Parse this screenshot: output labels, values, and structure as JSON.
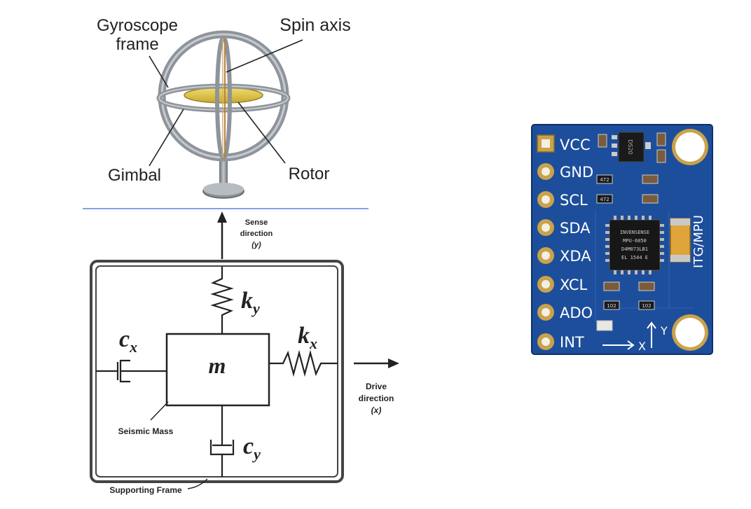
{
  "gyroscope": {
    "frame_label_line1": "Gyroscope",
    "frame_label_line2": "frame",
    "spin_axis_label": "Spin axis",
    "gimbal_label": "Gimbal",
    "rotor_label": "Rotor"
  },
  "mems_model": {
    "sense_line1": "Sense",
    "sense_line2": "direction",
    "sense_line3": "(y)",
    "spring_y": "k",
    "spring_y_sub": "y",
    "spring_x": "k",
    "spring_x_sub": "x",
    "damper_x": "c",
    "damper_x_sub": "x",
    "damper_y": "c",
    "damper_y_sub": "y",
    "mass": "m",
    "seismic_mass_label": "Seismic Mass",
    "supporting_frame_label": "Supporting Frame",
    "drive_line1": "Drive",
    "drive_line2": "direction",
    "drive_line3": "(x)"
  },
  "sensor_board": {
    "pins": [
      "VCC",
      "GND",
      "SCL",
      "SDA",
      "XDA",
      "XCL",
      "ADO",
      "INT"
    ],
    "side_label": "ITG/MPU",
    "chip_text": [
      "INVENSENSE",
      "MPU-6050",
      "D4M073LB1",
      "EL 1544 E"
    ],
    "regulator_text": "DS20",
    "resistor_codes": [
      "472",
      "472",
      "102",
      "102"
    ],
    "axis_x": "X",
    "axis_y": "Y",
    "board_color": "#1d4e9c"
  }
}
